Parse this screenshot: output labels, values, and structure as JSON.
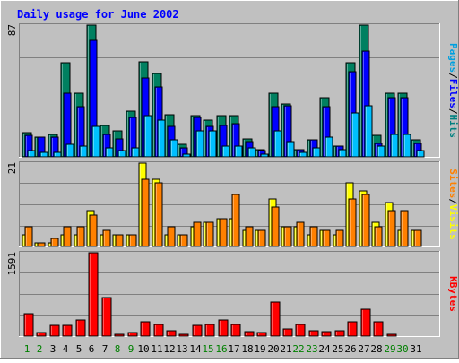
{
  "chart_data": {
    "type": "bar",
    "title": "Daily usage for June 2002",
    "days": [
      "1",
      "2",
      "3",
      "4",
      "5",
      "6",
      "7",
      "8",
      "9",
      "10",
      "11",
      "12",
      "13",
      "14",
      "15",
      "16",
      "17",
      "18",
      "19",
      "20",
      "21",
      "22",
      "23",
      "24",
      "25",
      "26",
      "27",
      "28",
      "29",
      "30",
      "31"
    ],
    "weekend_days": [
      "1",
      "2",
      "8",
      "9",
      "15",
      "16",
      "22",
      "23",
      "29",
      "30"
    ],
    "panels": [
      {
        "id": "top",
        "max_label": "87",
        "ymax": 87,
        "side_labels": [
          {
            "text": "Pages",
            "color": "#00a0e0"
          },
          {
            "text": "/",
            "color": "#000000"
          },
          {
            "text": "Files",
            "color": "#0000ff"
          },
          {
            "text": "/",
            "color": "#000000"
          },
          {
            "text": "Hits",
            "color": "#008080"
          }
        ],
        "series": [
          {
            "name": "Hits",
            "color": "#008060",
            "values": [
              16,
              13,
              15,
              62,
              42,
              87,
              21,
              17,
              30,
              63,
              55,
              28,
              8,
              27,
              24,
              27,
              27,
              12,
              5,
              42,
              35,
              5,
              11,
              39,
              7,
              62,
              87,
              14,
              42,
              42,
              11
            ]
          },
          {
            "name": "Files",
            "color": "#0000ff",
            "values": [
              14,
              13,
              13,
              42,
              33,
              77,
              15,
              12,
              26,
              52,
              46,
              20,
              6,
              26,
              20,
              21,
              22,
              10,
              4,
              33,
              34,
              5,
              11,
              33,
              7,
              56,
              70,
              9,
              39,
              39,
              9
            ]
          },
          {
            "name": "Pages",
            "color": "#00c0ff",
            "values": [
              4,
              3,
              3,
              8,
              7,
              20,
              6,
              4,
              6,
              27,
              24,
              11,
              2,
              17,
              17,
              7,
              7,
              6,
              2,
              17,
              10,
              3,
              6,
              13,
              5,
              29,
              34,
              7,
              15,
              15,
              4
            ]
          }
        ]
      },
      {
        "id": "mid",
        "max_label": "21",
        "ymax": 21,
        "side_labels": [
          {
            "text": "Sites",
            "color": "#ff8000"
          },
          {
            "text": "/",
            "color": "#000000"
          },
          {
            "text": "Visits",
            "color": "#ffff00"
          }
        ],
        "series": [
          {
            "name": "Visits",
            "color": "#ffff00",
            "values": [
              3,
              1,
              1,
              3,
              3,
              9,
              3,
              3,
              3,
              21,
              17,
              3,
              3,
              5,
              6,
              7,
              7,
              4,
              4,
              12,
              5,
              5,
              3,
              4,
              3,
              16,
              14,
              6,
              11,
              4,
              4
            ]
          },
          {
            "name": "Sites",
            "color": "#ff8000",
            "values": [
              5,
              1,
              2,
              5,
              5,
              8,
              4,
              3,
              3,
              17,
              16,
              5,
              3,
              6,
              6,
              7,
              13,
              5,
              4,
              10,
              5,
              6,
              5,
              4,
              4,
              12,
              13,
              5,
              9,
              9,
              4
            ]
          }
        ]
      },
      {
        "id": "bot",
        "max_label": "1591",
        "ymax": 1591,
        "side_labels": [
          {
            "text": "KBytes",
            "color": "#ff0000"
          }
        ],
        "series": [
          {
            "name": "KBytes",
            "color": "#ff0000",
            "values": [
              420,
              70,
              200,
              210,
              300,
              1591,
              740,
              40,
              70,
              280,
              230,
              100,
              40,
              200,
              220,
              300,
              230,
              90,
              70,
              650,
              140,
              220,
              100,
              90,
              100,
              280,
              510,
              270,
              40,
              0,
              0
            ]
          }
        ]
      }
    ],
    "colors": {
      "background": "#c0c0c0",
      "title": "#0000ff",
      "weekday_label": "#000000",
      "weekend_label": "#008000"
    }
  }
}
